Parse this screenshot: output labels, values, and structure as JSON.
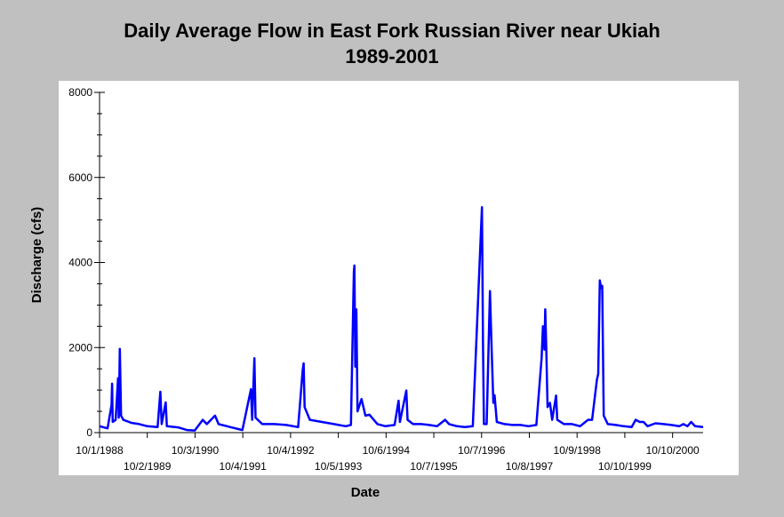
{
  "chart_data": {
    "type": "line",
    "title": "Daily Average Flow in East Fork Russian River near Ukiah",
    "subtitle": "1989-2001",
    "xlabel": "Date",
    "ylabel": "Discharge (cfs)",
    "ylim": [
      0,
      8000
    ],
    "yticks": [
      0,
      2000,
      4000,
      6000,
      8000
    ],
    "xlim": [
      "1988-10-01",
      "2001-06-01"
    ],
    "xticks_upper": [
      "10/1/1988",
      "10/3/1990",
      "10/4/1992",
      "10/6/1994",
      "10/7/1996",
      "10/9/1998",
      "10/10/2000"
    ],
    "xticks_lower": [
      "10/2/1989",
      "10/4/1991",
      "10/5/1993",
      "10/7/1995",
      "10/8/1997",
      "10/10/1999"
    ],
    "grid": false,
    "series": [
      {
        "color": "#0000ff",
        "points": [
          [
            "1988-10-01",
            150
          ],
          [
            "1988-12-01",
            100
          ],
          [
            "1989-01-01",
            650
          ],
          [
            "1989-01-05",
            1150
          ],
          [
            "1989-01-10",
            250
          ],
          [
            "1989-02-01",
            300
          ],
          [
            "1989-02-20",
            1280
          ],
          [
            "1989-02-25",
            350
          ],
          [
            "1989-03-05",
            1970
          ],
          [
            "1989-03-15",
            400
          ],
          [
            "1989-04-01",
            300
          ],
          [
            "1989-06-01",
            230
          ],
          [
            "1989-08-01",
            200
          ],
          [
            "1989-10-01",
            150
          ],
          [
            "1989-12-20",
            130
          ],
          [
            "1990-01-10",
            960
          ],
          [
            "1990-01-20",
            200
          ],
          [
            "1990-02-20",
            710
          ],
          [
            "1990-03-01",
            150
          ],
          [
            "1990-06-01",
            120
          ],
          [
            "1990-08-01",
            60
          ],
          [
            "1990-10-01",
            50
          ],
          [
            "1990-12-01",
            300
          ],
          [
            "1991-01-01",
            200
          ],
          [
            "1991-03-05",
            400
          ],
          [
            "1991-04-01",
            200
          ],
          [
            "1991-07-01",
            130
          ],
          [
            "1991-10-01",
            60
          ],
          [
            "1991-12-05",
            1020
          ],
          [
            "1991-12-15",
            300
          ],
          [
            "1992-01-01",
            1750
          ],
          [
            "1992-01-10",
            350
          ],
          [
            "1992-03-01",
            200
          ],
          [
            "1992-06-01",
            200
          ],
          [
            "1992-09-01",
            180
          ],
          [
            "1992-12-01",
            130
          ],
          [
            "1993-01-05",
            1460
          ],
          [
            "1993-01-12",
            1630
          ],
          [
            "1993-01-20",
            600
          ],
          [
            "1993-03-01",
            300
          ],
          [
            "1993-06-01",
            250
          ],
          [
            "1993-09-01",
            200
          ],
          [
            "1993-12-01",
            150
          ],
          [
            "1994-01-10",
            180
          ],
          [
            "1994-02-01",
            3780
          ],
          [
            "1994-02-05",
            3930
          ],
          [
            "1994-02-12",
            1550
          ],
          [
            "1994-02-20",
            2900
          ],
          [
            "1994-03-01",
            500
          ],
          [
            "1994-04-01",
            790
          ],
          [
            "1994-05-01",
            400
          ],
          [
            "1994-06-01",
            420
          ],
          [
            "1994-08-01",
            200
          ],
          [
            "1994-10-01",
            150
          ],
          [
            "1994-12-10",
            180
          ],
          [
            "1995-01-10",
            750
          ],
          [
            "1995-01-20",
            250
          ],
          [
            "1995-03-10",
            990
          ],
          [
            "1995-03-20",
            300
          ],
          [
            "1995-05-01",
            200
          ],
          [
            "1995-07-01",
            200
          ],
          [
            "1995-09-01",
            180
          ],
          [
            "1995-11-01",
            150
          ],
          [
            "1996-01-01",
            300
          ],
          [
            "1996-02-01",
            200
          ],
          [
            "1996-04-01",
            150
          ],
          [
            "1996-06-01",
            130
          ],
          [
            "1996-08-01",
            150
          ],
          [
            "1996-10-10",
            5300
          ],
          [
            "1996-10-18",
            2050
          ],
          [
            "1996-10-25",
            200
          ],
          [
            "1996-11-15",
            200
          ],
          [
            "1996-12-10",
            3330
          ],
          [
            "1996-12-20",
            2300
          ],
          [
            "1997-01-05",
            700
          ],
          [
            "1997-01-15",
            880
          ],
          [
            "1997-02-01",
            250
          ],
          [
            "1997-04-01",
            200
          ],
          [
            "1997-06-01",
            180
          ],
          [
            "1997-08-01",
            180
          ],
          [
            "1997-10-01",
            150
          ],
          [
            "1997-12-01",
            180
          ],
          [
            "1998-01-10",
            1750
          ],
          [
            "1998-01-20",
            2500
          ],
          [
            "1998-02-01",
            1950
          ],
          [
            "1998-02-07",
            2900
          ],
          [
            "1998-02-15",
            1950
          ],
          [
            "1998-02-25",
            600
          ],
          [
            "1998-03-15",
            700
          ],
          [
            "1998-04-01",
            300
          ],
          [
            "1998-05-01",
            870
          ],
          [
            "1998-05-10",
            300
          ],
          [
            "1998-07-01",
            200
          ],
          [
            "1998-09-01",
            200
          ],
          [
            "1998-11-01",
            150
          ],
          [
            "1999-01-01",
            300
          ],
          [
            "1999-02-01",
            300
          ],
          [
            "1999-03-10",
            1240
          ],
          [
            "1999-03-20",
            1380
          ],
          [
            "1999-04-01",
            3580
          ],
          [
            "1999-04-10",
            3400
          ],
          [
            "1999-04-20",
            3450
          ],
          [
            "1999-05-01",
            400
          ],
          [
            "1999-06-01",
            200
          ],
          [
            "1999-08-01",
            180
          ],
          [
            "1999-10-01",
            150
          ],
          [
            "1999-12-01",
            130
          ],
          [
            "2000-01-01",
            300
          ],
          [
            "2000-02-01",
            250
          ],
          [
            "2000-03-01",
            250
          ],
          [
            "2000-04-01",
            150
          ],
          [
            "2000-06-01",
            220
          ],
          [
            "2000-08-01",
            200
          ],
          [
            "2000-10-01",
            180
          ],
          [
            "2000-12-01",
            150
          ],
          [
            "2001-01-01",
            200
          ],
          [
            "2001-02-01",
            150
          ],
          [
            "2001-03-01",
            250
          ],
          [
            "2001-04-01",
            150
          ],
          [
            "2001-06-01",
            130
          ]
        ]
      }
    ]
  }
}
